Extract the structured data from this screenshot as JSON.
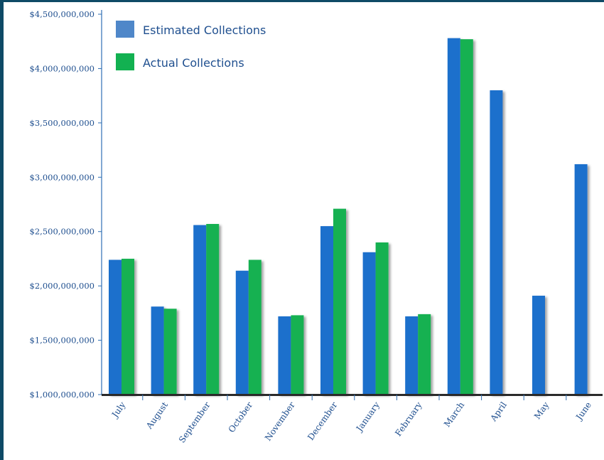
{
  "colors": {
    "frame": "#0e4a66",
    "estimated": "#1f6fcc",
    "estimated_legend": "#4f87c9",
    "actual": "#12b151",
    "axis": "#2f6fb3",
    "baseline": "#2a2a2a",
    "text": "#1f4f8f"
  },
  "chart_data": {
    "type": "bar",
    "title": "",
    "xlabel": "",
    "ylabel": "",
    "ylim": [
      1000000000,
      4500000000
    ],
    "grid": false,
    "legend_position": "top-left",
    "y_ticks": [
      "$1,000,000,000",
      "$1,500,000,000",
      "$2,000,000,000",
      "$2,500,000,000",
      "$3,000,000,000",
      "$3,500,000,000",
      "$4,000,000,000",
      "$4,500,000,000"
    ],
    "y_tick_values": [
      1000000000,
      1500000000,
      2000000000,
      2500000000,
      3000000000,
      3500000000,
      4000000000,
      4500000000
    ],
    "categories": [
      "July",
      "August",
      "September",
      "October",
      "November",
      "December",
      "January",
      "February",
      "March",
      "April",
      "May",
      "June"
    ],
    "series": [
      {
        "name": "Estimated Collections",
        "values": [
          2240000000,
          1810000000,
          2560000000,
          2140000000,
          1720000000,
          2550000000,
          2310000000,
          1720000000,
          4280000000,
          3800000000,
          1910000000,
          3120000000
        ]
      },
      {
        "name": "Actual Collections",
        "values": [
          2250000000,
          1790000000,
          2570000000,
          2240000000,
          1730000000,
          2710000000,
          2400000000,
          1740000000,
          4270000000,
          null,
          null,
          null
        ]
      }
    ]
  }
}
